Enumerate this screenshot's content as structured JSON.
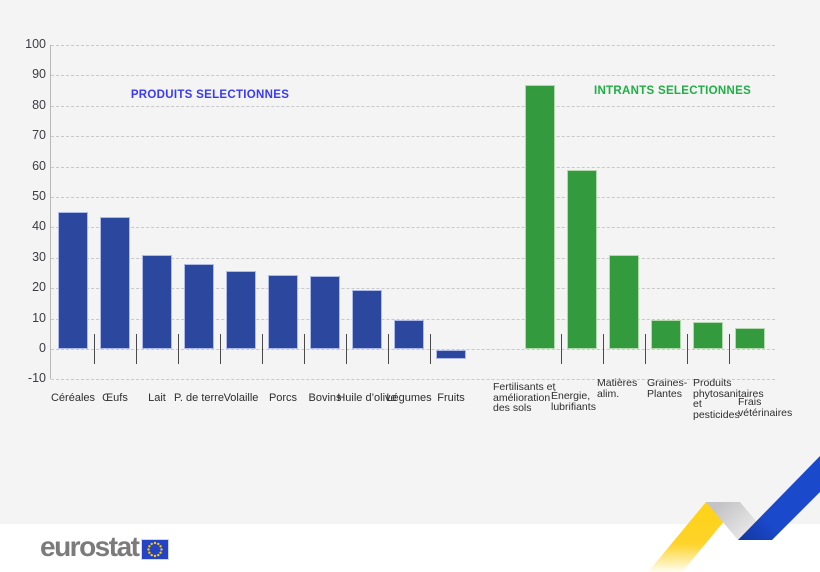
{
  "chart_data": {
    "type": "bar",
    "title": "",
    "xlabel": "",
    "ylabel": "",
    "ylim": [
      -10,
      100
    ],
    "ytick_step": 10,
    "yticks": [
      100,
      90,
      80,
      70,
      60,
      50,
      40,
      30,
      20,
      10,
      0,
      -10
    ],
    "grid": "horizontal-dashed",
    "legend": "none",
    "series": [
      {
        "name": "PRODUITS SELECTIONNES",
        "title_color": "#3a3af2",
        "bar_color": "#2b489e",
        "bar_edge_color": "#aebbe8",
        "categories": [
          "Céréales",
          "Œufs",
          "Lait",
          "P. de terre",
          "Volaille",
          "Porcs",
          "Bovins",
          "Huile d’olive",
          "Légumes",
          "Fruits"
        ],
        "values": [
          45,
          43.5,
          31,
          28,
          25.5,
          24.5,
          24,
          19.5,
          9.5,
          -3
        ]
      },
      {
        "name": "INTRANTS SELECTIONNES",
        "title_color": "#21ae46",
        "bar_color": "#339a3d",
        "bar_edge_color": "#b5d9ae",
        "categories": [
          "Fertilisants et\namélioration\ndes sols",
          "Énergie,\nlubrifiants",
          "Matières\nalim.",
          "Graines-\nPlantes",
          "Produits\nphytosanitaires\net\npesticides",
          "Frais\nvétérinaires"
        ],
        "values": [
          87,
          59,
          31,
          9.5,
          9,
          7
        ]
      }
    ]
  },
  "footer": {
    "brand": "eurostat",
    "flag_icon": "eu-flag-icon",
    "flag_blue": "#2444c4",
    "star_yellow": "#ffcc00"
  },
  "decor": {
    "ribbon_yellow": "#ffd314",
    "ribbon_gray": "#c4c4c6",
    "ribbon_blue": "#1b49cc",
    "background_gray": "#f4f4f5"
  }
}
